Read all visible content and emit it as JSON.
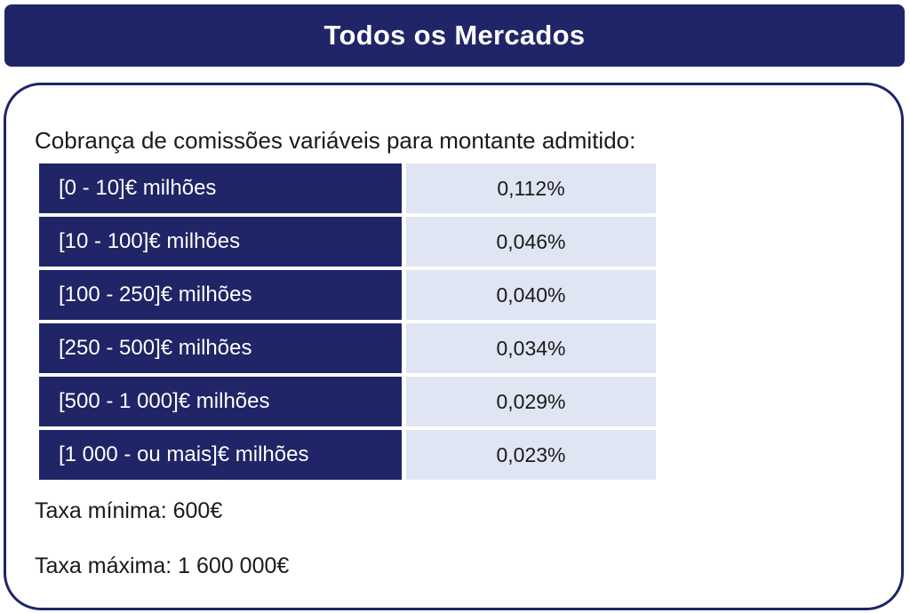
{
  "header": {
    "title": "Todos os Mercados"
  },
  "intro": "Cobrança de comissões variáveis para montante admitido:",
  "fee_table": {
    "rows": [
      {
        "range": "[0 - 10]€ milhões",
        "rate": "0,112%"
      },
      {
        "range": "[10 - 100]€ milhões",
        "rate": "0,046%"
      },
      {
        "range": "[100 - 250]€ milhões",
        "rate": "0,040%"
      },
      {
        "range": "[250 - 500]€ milhões",
        "rate": "0,034%"
      },
      {
        "range": "[500 - 1 000]€ milhões",
        "rate": "0,029%"
      },
      {
        "range": "[1 000 - ou mais]€ milhões",
        "rate": "0,023%"
      }
    ]
  },
  "min_fee": "Taxa mínima: 600€",
  "max_fee": "Taxa máxima: 1 600 000€",
  "colors": {
    "navy": "#1f2566",
    "light_blue": "#dfe5f2"
  }
}
